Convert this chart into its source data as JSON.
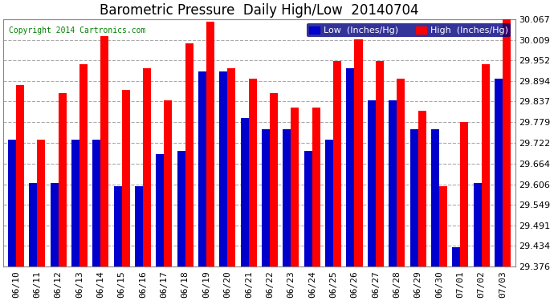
{
  "title": "Barometric Pressure  Daily High/Low  20140704",
  "copyright": "Copyright 2014 Cartronics.com",
  "legend_low": "Low  (Inches/Hg)",
  "legend_high": "High  (Inches/Hg)",
  "dates": [
    "06/10",
    "06/11",
    "06/12",
    "06/13",
    "06/14",
    "06/15",
    "06/16",
    "06/17",
    "06/18",
    "06/19",
    "06/20",
    "06/21",
    "06/22",
    "06/23",
    "06/24",
    "06/25",
    "06/26",
    "06/27",
    "06/28",
    "06/29",
    "06/30",
    "07/01",
    "07/02",
    "07/03"
  ],
  "lows": [
    29.73,
    29.61,
    29.61,
    29.73,
    29.73,
    29.6,
    29.6,
    29.69,
    29.7,
    29.92,
    29.92,
    29.79,
    29.76,
    29.76,
    29.7,
    29.73,
    29.93,
    29.84,
    29.84,
    29.76,
    29.76,
    29.43,
    29.61,
    29.9
  ],
  "highs": [
    29.882,
    29.73,
    29.86,
    29.94,
    30.02,
    29.87,
    29.93,
    29.84,
    30.0,
    30.06,
    29.93,
    29.9,
    29.86,
    29.82,
    29.82,
    29.95,
    30.01,
    29.95,
    29.9,
    29.81,
    29.6,
    29.78,
    29.94,
    30.067
  ],
  "ylim_min": 29.376,
  "ylim_max": 30.067,
  "yticks": [
    29.376,
    29.434,
    29.491,
    29.549,
    29.606,
    29.664,
    29.722,
    29.779,
    29.837,
    29.894,
    29.952,
    30.009,
    30.067
  ],
  "bar_width": 0.38,
  "low_color": "#0000cc",
  "high_color": "#ff0000",
  "bg_color": "#ffffff",
  "grid_color": "#aaaaaa",
  "title_fontsize": 12,
  "tick_fontsize": 8,
  "legend_fontsize": 8
}
